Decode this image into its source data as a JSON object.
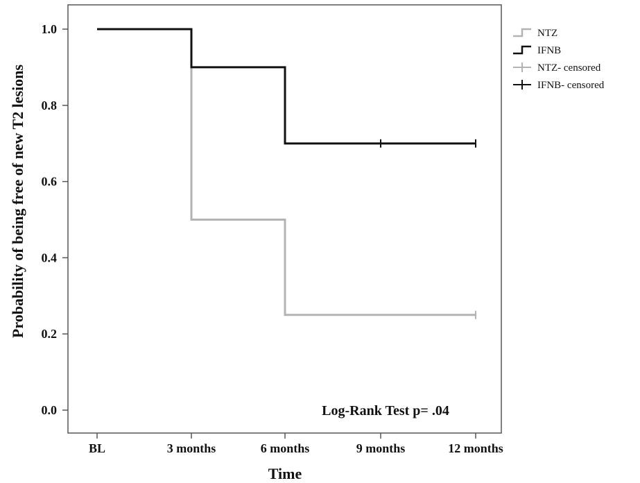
{
  "chart_data": {
    "type": "line",
    "title": "",
    "xlabel": "Time",
    "ylabel": "Probability of being free of new T2 lesions",
    "x_categories": [
      "BL",
      "3 months",
      "6 months",
      "9 months",
      "12 months"
    ],
    "y_ticks": [
      "0.0",
      "0.2",
      "0.4",
      "0.6",
      "0.8",
      "1.0"
    ],
    "ylim": [
      0,
      1
    ],
    "grid": false,
    "legend_position": "outside-top-right",
    "annotation": "Log-Rank Test p= .04",
    "series": [
      {
        "name": "NTZ",
        "color": "#b3b3b3",
        "step_points": [
          [
            0,
            1.0
          ],
          [
            1,
            1.0
          ],
          [
            1,
            0.5
          ],
          [
            2,
            0.5
          ],
          [
            2,
            0.25
          ],
          [
            4,
            0.25
          ]
        ],
        "censored_x": [
          4
        ],
        "censored_y": [
          0.25
        ]
      },
      {
        "name": "IFNB",
        "color": "#111111",
        "step_points": [
          [
            0,
            1.0
          ],
          [
            1,
            1.0
          ],
          [
            1,
            0.9
          ],
          [
            2,
            0.9
          ],
          [
            2,
            0.7
          ],
          [
            4,
            0.7
          ]
        ],
        "censored_x": [
          3,
          4
        ],
        "censored_y": [
          0.7,
          0.7
        ]
      }
    ],
    "legend": [
      {
        "label": "NTZ",
        "kind": "step",
        "color": "#b3b3b3"
      },
      {
        "label": "IFNB",
        "kind": "step",
        "color": "#111111"
      },
      {
        "label": "NTZ- censored",
        "kind": "cross",
        "color": "#b3b3b3"
      },
      {
        "label": "IFNB- censored",
        "kind": "cross",
        "color": "#111111"
      }
    ]
  }
}
